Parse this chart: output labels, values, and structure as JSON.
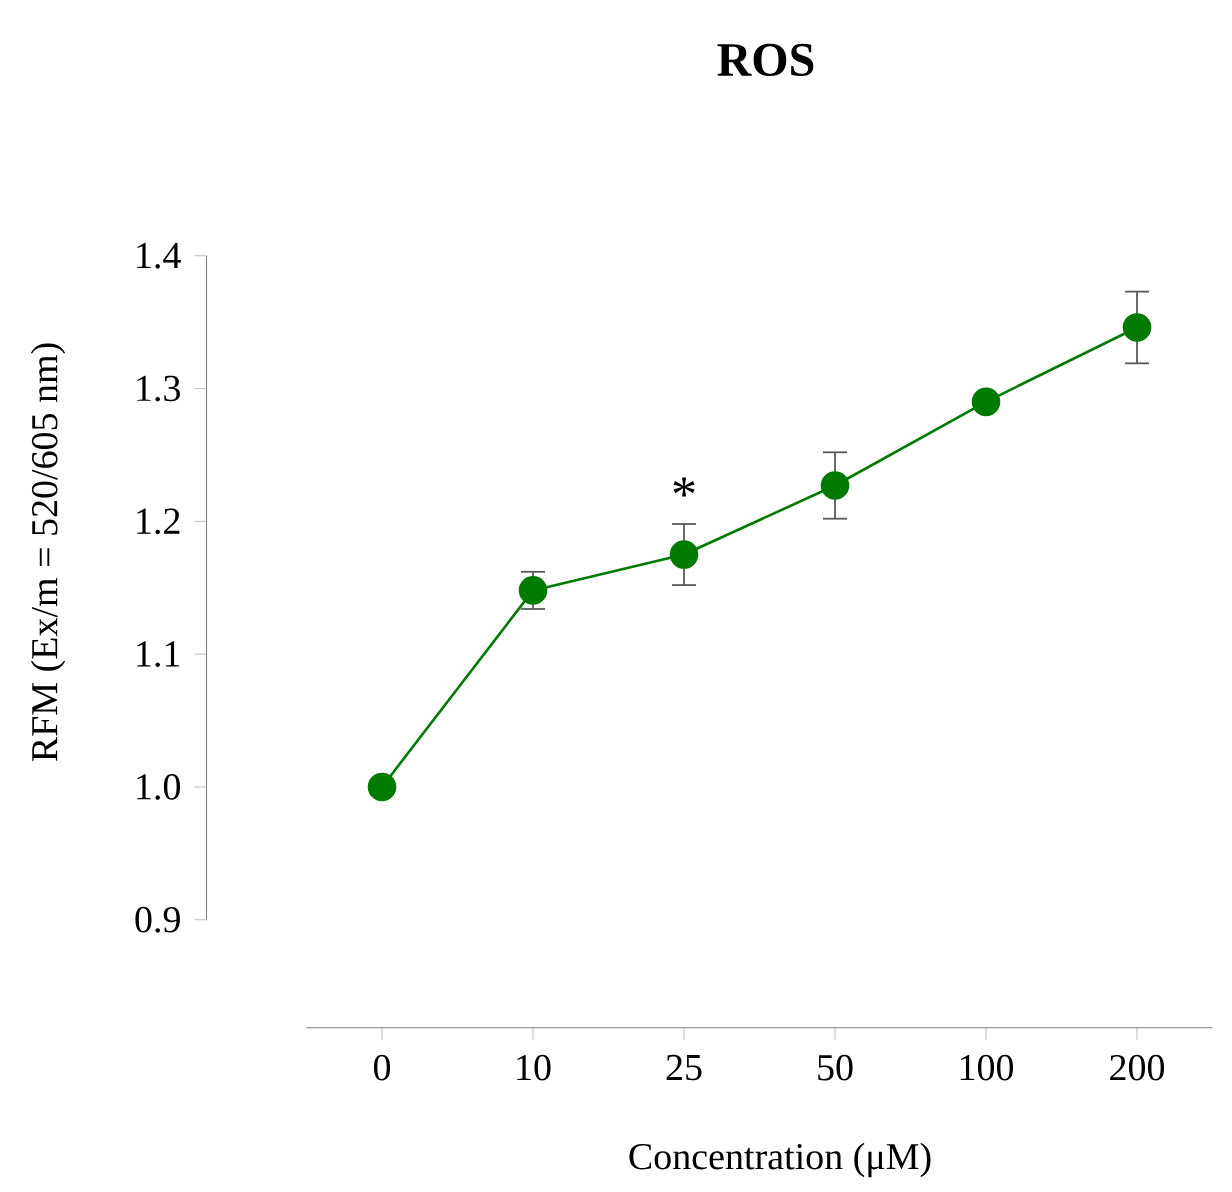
{
  "chart_data": {
    "type": "line",
    "title": "ROS",
    "xlabel": "Concentration (μM)",
    "ylabel": "RFM (Ex/m = 520/605 nm)",
    "categories": [
      "0",
      "10",
      "25",
      "50",
      "100",
      "200"
    ],
    "series": [
      {
        "color": "#007a00",
        "values": [
          1.0,
          1.148,
          1.175,
          1.227,
          1.29,
          1.346
        ],
        "errors": [
          null,
          0.014,
          0.023,
          0.025,
          null,
          0.027
        ]
      }
    ],
    "ylim": [
      0.9,
      1.4
    ],
    "yticks": [
      {
        "value": 0.9,
        "label": "0.9"
      },
      {
        "value": 1.0,
        "label": "1.0"
      },
      {
        "value": 1.1,
        "label": "1.1"
      },
      {
        "value": 1.2,
        "label": "1.2"
      },
      {
        "value": 1.3,
        "label": "1.3"
      },
      {
        "value": 1.4,
        "label": "1.4"
      }
    ],
    "marker": "circle",
    "line_style": "solid",
    "grid": false,
    "annotations": [
      {
        "text": "*",
        "x": "25",
        "y": 1.175
      }
    ]
  }
}
